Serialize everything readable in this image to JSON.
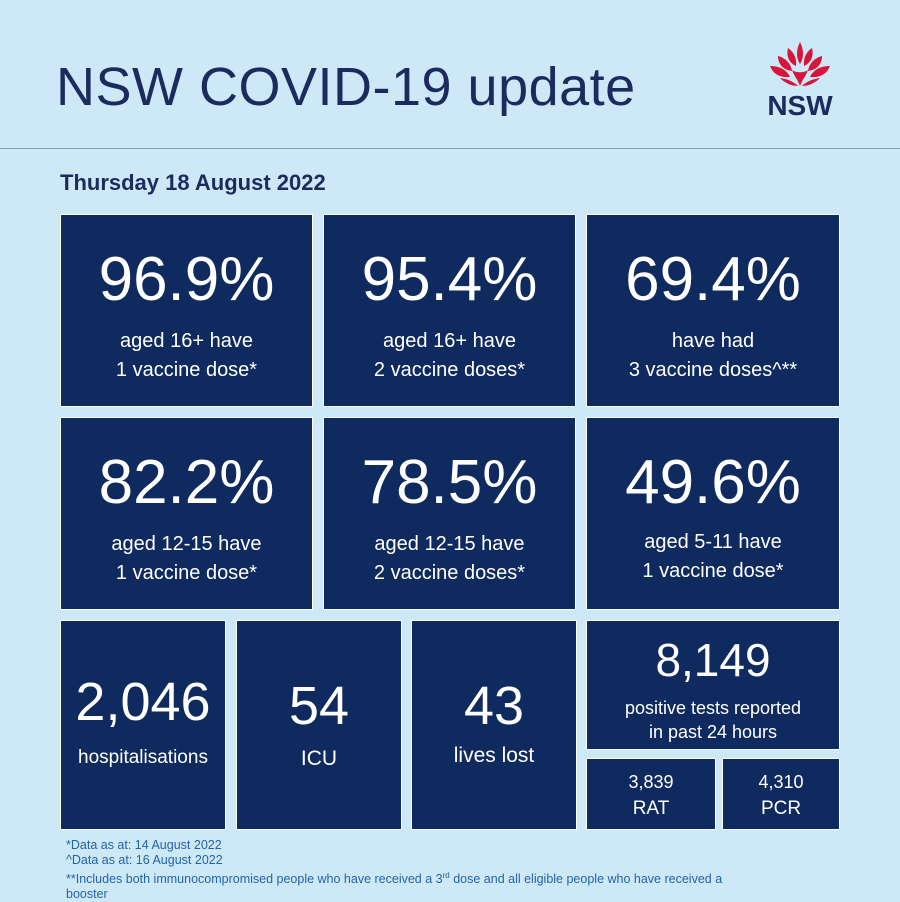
{
  "header": {
    "title": "NSW COVID-19 update",
    "logo_text": "NSW"
  },
  "date": "Thursday 18 August 2022",
  "vaccine_tiles": [
    {
      "value": "96.9%",
      "line1": "aged 16+ have",
      "line2": "1 vaccine dose*"
    },
    {
      "value": "95.4%",
      "line1": "aged 16+ have",
      "line2": "2 vaccine doses*"
    },
    {
      "value": "69.4%",
      "line1": "have had",
      "line2": "3 vaccine doses^**"
    },
    {
      "value": "82.2%",
      "line1": "aged 12-15 have",
      "line2": "1 vaccine dose*"
    },
    {
      "value": "78.5%",
      "line1": "aged 12-15 have",
      "line2": "2 vaccine doses*"
    },
    {
      "value": "49.6%",
      "line1": "aged 5-11 have",
      "line2": "1 vaccine dose*"
    }
  ],
  "stats": {
    "hospitalisations": {
      "value": "2,046",
      "label": "hospitalisations"
    },
    "icu": {
      "value": "54",
      "label": "ICU"
    },
    "lives_lost": {
      "value": "43",
      "label": "lives lost"
    },
    "positive_tests": {
      "value": "8,149",
      "line1": "positive tests reported",
      "line2": "in past 24 hours"
    },
    "rat": {
      "value": "3,839",
      "label": "RAT"
    },
    "pcr": {
      "value": "4,310",
      "label": "PCR"
    }
  },
  "footnotes": {
    "note1": "*Data as at: 14 August 2022",
    "note2": "^Data as at: 16 August 2022",
    "note3_pre": "**Includes both immunocompromised  people who have received a 3",
    "note3_sup": "rd",
    "note3_post": " dose and all eligible people  who have received a",
    "note3_line2": "booster"
  },
  "colors": {
    "background": "#cde9f8",
    "tile": "#0f2a5f",
    "title": "#1b2b5e",
    "logo_red": "#d7153a"
  }
}
